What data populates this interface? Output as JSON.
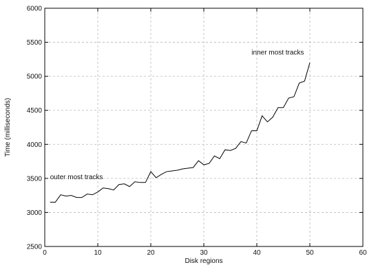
{
  "chart_data": {
    "type": "line",
    "title": "",
    "xlabel": "Disk regions",
    "ylabel": "Time (milliseconds)",
    "xlim": [
      0,
      60
    ],
    "ylim": [
      2500,
      6000
    ],
    "xticks": [
      0,
      10,
      20,
      30,
      40,
      50,
      60
    ],
    "yticks": [
      2500,
      3000,
      3500,
      4000,
      4500,
      5000,
      5500,
      6000
    ],
    "grid": true,
    "series": [
      {
        "x": [
          1,
          2,
          3,
          4,
          5,
          6,
          7,
          8,
          9,
          10,
          11,
          12,
          13,
          14,
          15,
          16,
          17,
          18,
          19,
          20,
          21,
          22,
          23,
          24,
          25,
          26,
          27,
          28,
          29,
          30,
          31,
          32,
          33,
          34,
          35,
          36,
          37,
          38,
          39,
          40,
          41,
          42,
          43,
          44,
          45,
          46,
          47,
          48,
          49,
          50
        ],
        "values": [
          3150,
          3150,
          3260,
          3240,
          3250,
          3220,
          3220,
          3270,
          3260,
          3300,
          3360,
          3350,
          3330,
          3410,
          3420,
          3380,
          3450,
          3440,
          3440,
          3600,
          3510,
          3560,
          3600,
          3610,
          3620,
          3640,
          3650,
          3660,
          3760,
          3700,
          3720,
          3830,
          3790,
          3920,
          3910,
          3940,
          4040,
          4020,
          4200,
          4200,
          4420,
          4330,
          4400,
          4540,
          4540,
          4680,
          4700,
          4900,
          4930,
          5200
        ]
      }
    ],
    "annotations": [
      {
        "text": "outer most tracks",
        "x": 1,
        "y": 3490
      },
      {
        "text": "inner most tracks",
        "x": 39,
        "y": 5320
      }
    ]
  }
}
